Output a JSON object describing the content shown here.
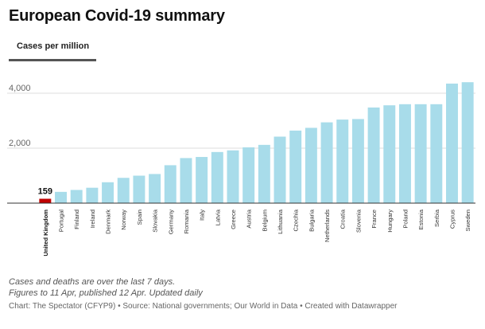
{
  "header": {
    "title": "European Covid-19 summary"
  },
  "tabs": [
    {
      "label": "Cases per million",
      "active": true
    }
  ],
  "chart_data": {
    "type": "bar",
    "title": "European Covid-19 summary",
    "xlabel": "",
    "ylabel": "",
    "ylim": [
      0,
      4500
    ],
    "yticks": [
      2000,
      4000
    ],
    "ytick_labels": [
      "2,000",
      "4,000"
    ],
    "grid": true,
    "categories": [
      "United Kingdom",
      "Portugal",
      "Finland",
      "Ireland",
      "Denmark",
      "Norway",
      "Spain",
      "Slovakia",
      "Germany",
      "Romania",
      "Italy",
      "Latvia",
      "Greece",
      "Austria",
      "Belgium",
      "Lithuania",
      "Czechia",
      "Bulgaria",
      "Netherlands",
      "Croatia",
      "Slovenia",
      "France",
      "Hungary",
      "Poland",
      "Estonia",
      "Serbia",
      "Cyprus",
      "Sweden"
    ],
    "values": [
      159,
      410,
      480,
      560,
      760,
      920,
      1000,
      1060,
      1380,
      1640,
      1680,
      1860,
      1920,
      2030,
      2120,
      2420,
      2640,
      2740,
      2940,
      3040,
      3060,
      3480,
      3560,
      3600,
      3600,
      3600,
      4350,
      4400
    ],
    "highlight": {
      "category": "United Kingdom",
      "label": "159",
      "color": "#c00000"
    },
    "bar_color": "#a8dcea"
  },
  "footer": {
    "note_1": "Cases and deaths are over the last 7 days.",
    "note_2": "Figures to 11 Apr, published 12 Apr. Updated daily",
    "source": "Chart: The Spectator (CFYP9) • Source: National governments; Our World in Data • Created with Datawrapper"
  },
  "colors": {
    "bar": "#a8dcea",
    "highlight": "#c00000",
    "tab_underline": "#555555"
  }
}
